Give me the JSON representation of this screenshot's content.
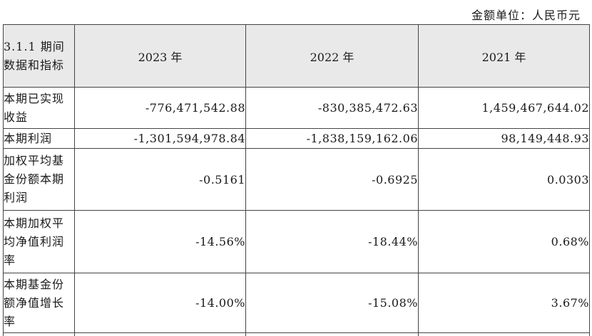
{
  "unit_label": "金额单位：人民币元",
  "table": {
    "header": {
      "label": "3.1.1 期间数据和指标",
      "years": [
        "2023 年",
        "2022 年",
        "2021 年"
      ]
    },
    "rows": [
      {
        "label": "本期已实现收益",
        "values": [
          "-776,471,542.88",
          "-830,385,472.63",
          "1,459,467,644.02"
        ]
      },
      {
        "label": "本期利润",
        "values": [
          "-1,301,594,978.84",
          "-1,838,159,162.06",
          "98,149,448.93"
        ]
      },
      {
        "label": "加权平均基金份额本期利润",
        "values": [
          "-0.5161",
          "-0.6925",
          "0.0303"
        ]
      },
      {
        "label": "本期加权平均净值利润率",
        "values": [
          "-14.56%",
          "-18.44%",
          "0.68%"
        ]
      },
      {
        "label": "本期基金份额净值增长率",
        "values": [
          "-14.00%",
          "-15.08%",
          "3.67%"
        ]
      }
    ]
  }
}
